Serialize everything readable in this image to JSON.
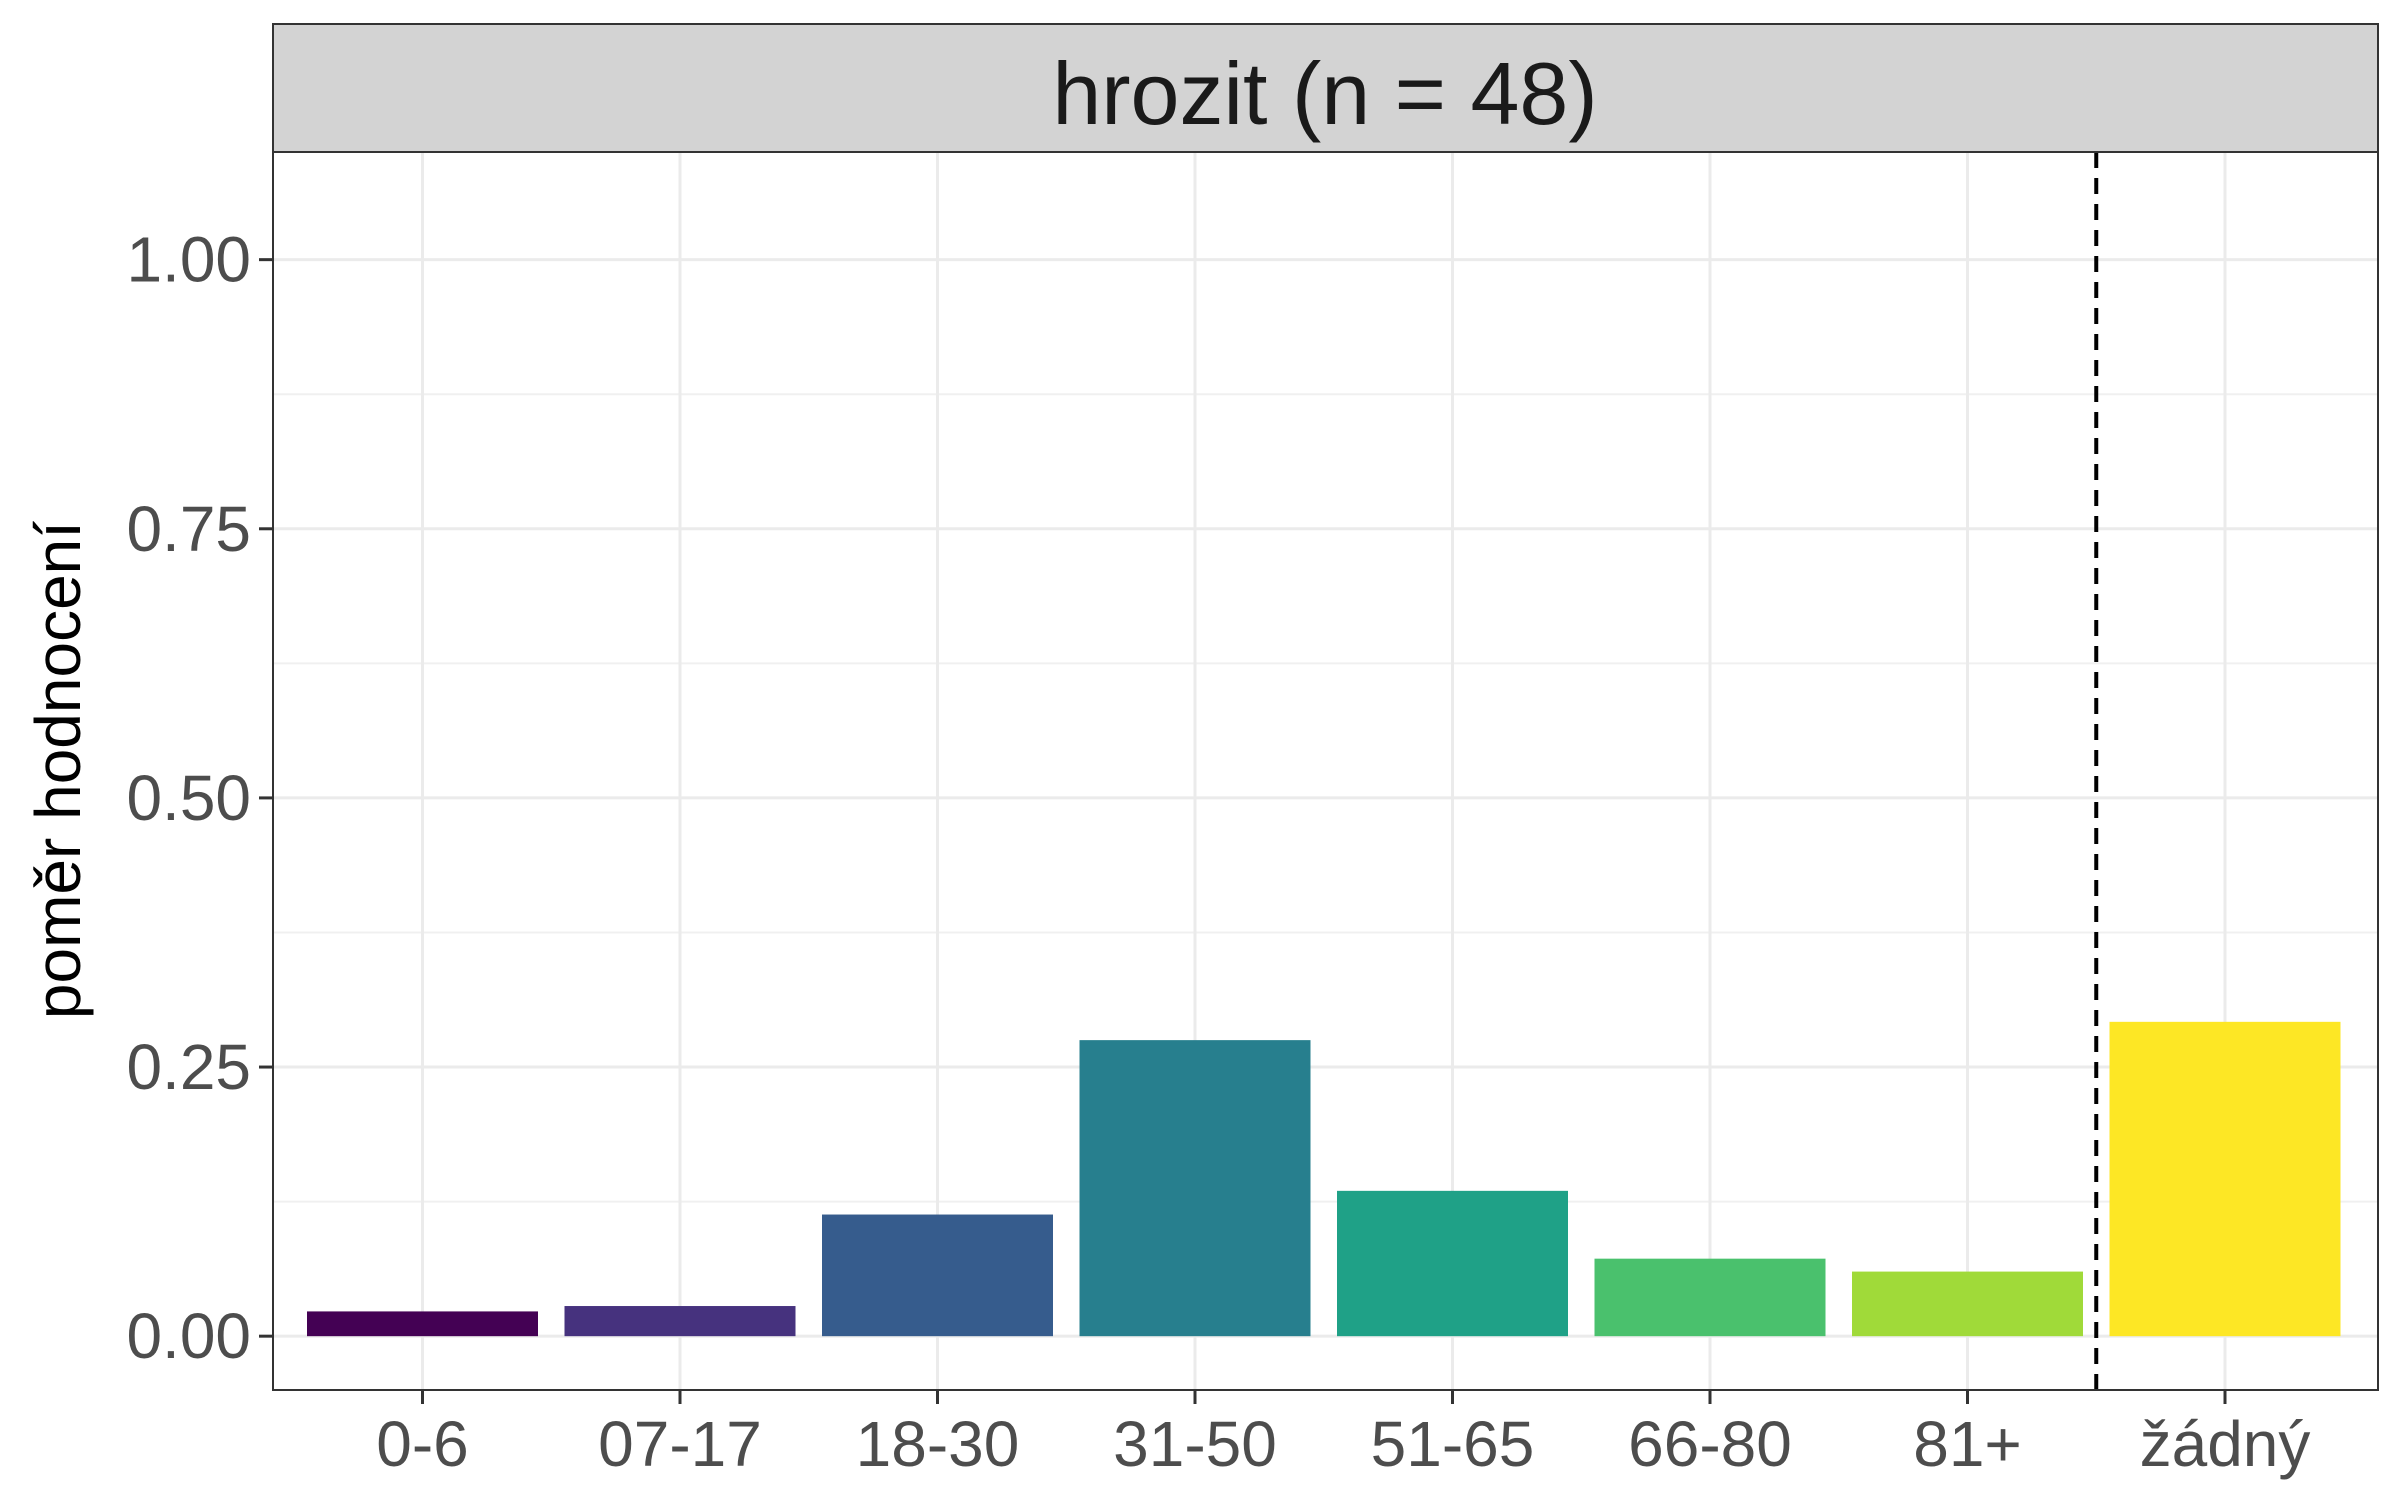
{
  "chart_data": {
    "type": "bar",
    "title": "hrozit (n = 48)",
    "xlabel": "",
    "ylabel": "poměr hodnocení",
    "ylim": [
      0,
      1.1
    ],
    "yticks": [
      "0.00",
      "0.25",
      "0.50",
      "0.75",
      "1.00"
    ],
    "categories": [
      "0-6",
      "07-17",
      "18-30",
      "31-50",
      "51-65",
      "66-80",
      "81+",
      "žádný"
    ],
    "values": [
      0.023,
      0.028,
      0.113,
      0.275,
      0.135,
      0.072,
      0.06,
      0.292
    ],
    "colors": [
      "#440154",
      "#46327e",
      "#365c8d",
      "#277f8e",
      "#1fa187",
      "#4ac16d",
      "#a0da39",
      "#fde725"
    ],
    "reference_line": "dashed vertical line between 81+ and žádný",
    "grid": true,
    "legend": "none"
  }
}
